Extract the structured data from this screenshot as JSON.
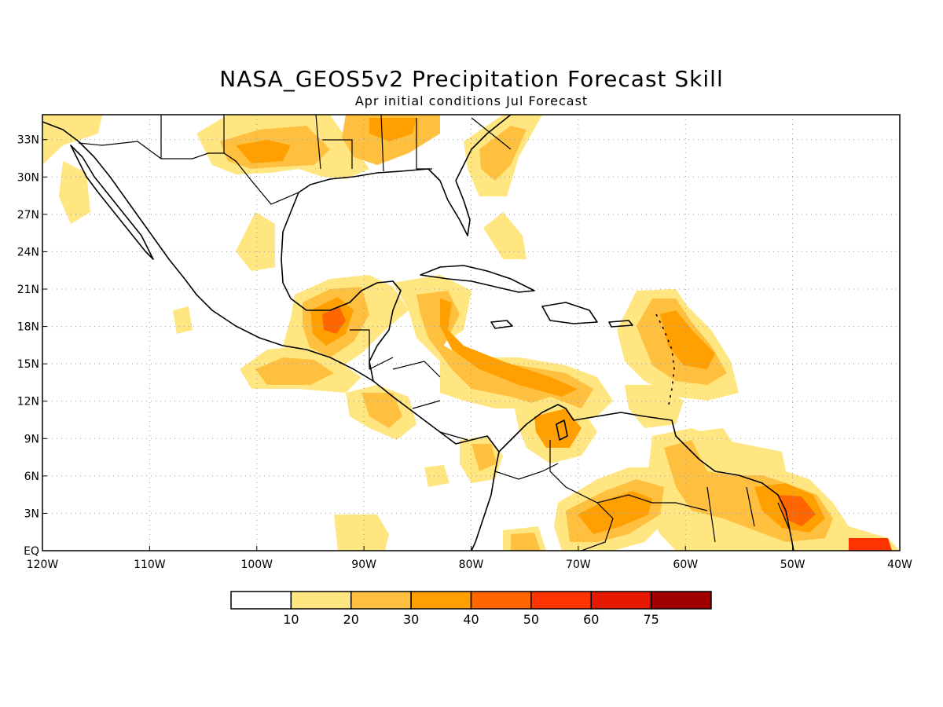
{
  "title": "NASA_GEOS5v2 Precipitation Forecast Skill",
  "subtitle": "Apr initial conditions  Jul Forecast",
  "map": {
    "lon_range": [
      -120,
      -40
    ],
    "lat_range": [
      0,
      35
    ],
    "lon_ticks": [
      "120W",
      "110W",
      "100W",
      "90W",
      "80W",
      "70W",
      "60W",
      "50W",
      "40W"
    ],
    "lat_ticks": [
      "EQ",
      "3N",
      "6N",
      "9N",
      "12N",
      "15N",
      "18N",
      "21N",
      "24N",
      "27N",
      "30N",
      "33N"
    ],
    "grid": "dotted",
    "region": "Central America, Mexico, Caribbean and northern South America"
  },
  "colorbar": {
    "labels": [
      "10",
      "20",
      "30",
      "40",
      "50",
      "60",
      "75"
    ],
    "colors": [
      "#ffffff",
      "#ffe680",
      "#ffbf3f",
      "#ffa000",
      "#ff6600",
      "#ff3300",
      "#e61a00",
      "#a00000"
    ]
  }
}
